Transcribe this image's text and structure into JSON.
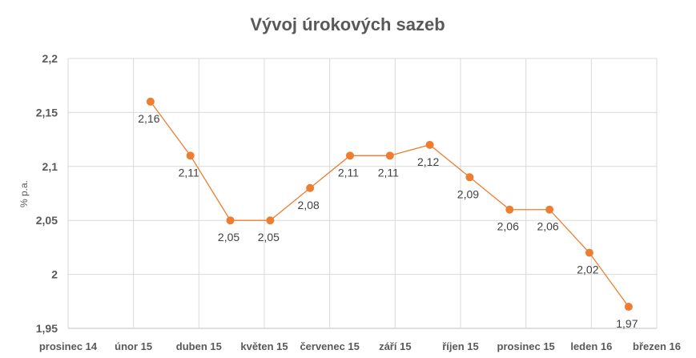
{
  "chart_data": {
    "type": "line",
    "title": "Vývoj úrokových sazeb",
    "xlabel": "",
    "ylabel": "% p.a.",
    "ylim": [
      1.95,
      2.2
    ],
    "yticks": [
      "1,95",
      "2",
      "2,05",
      "2,1",
      "2,15",
      "2,2"
    ],
    "ytick_values": [
      1.95,
      2.0,
      2.05,
      2.1,
      2.15,
      2.2
    ],
    "xticks": [
      "prosinec 14",
      "únor 15",
      "duben 15",
      "květen 15",
      "červenec 15",
      "září 15",
      "říjen 15",
      "prosinec 15",
      "leden 16",
      "březen 16"
    ],
    "grid": true,
    "legend": "none",
    "series": [
      {
        "name": "% p.a.",
        "color": "#ED7D31",
        "x_tick_position": [
          1.26,
          1.87,
          2.48,
          3.09,
          3.7,
          4.31,
          4.92,
          5.53,
          6.14,
          6.75,
          7.36,
          7.97,
          8.57
        ],
        "values": [
          2.16,
          2.11,
          2.05,
          2.05,
          2.08,
          2.11,
          2.11,
          2.12,
          2.09,
          2.06,
          2.06,
          2.02,
          1.97
        ],
        "labels": [
          "2,16",
          "2,11",
          "2,05",
          "2,05",
          "2,08",
          "2,11",
          "2,11",
          "2,12",
          "2,09",
          "2,06",
          "2,06",
          "2,02",
          "1,97"
        ]
      }
    ]
  }
}
